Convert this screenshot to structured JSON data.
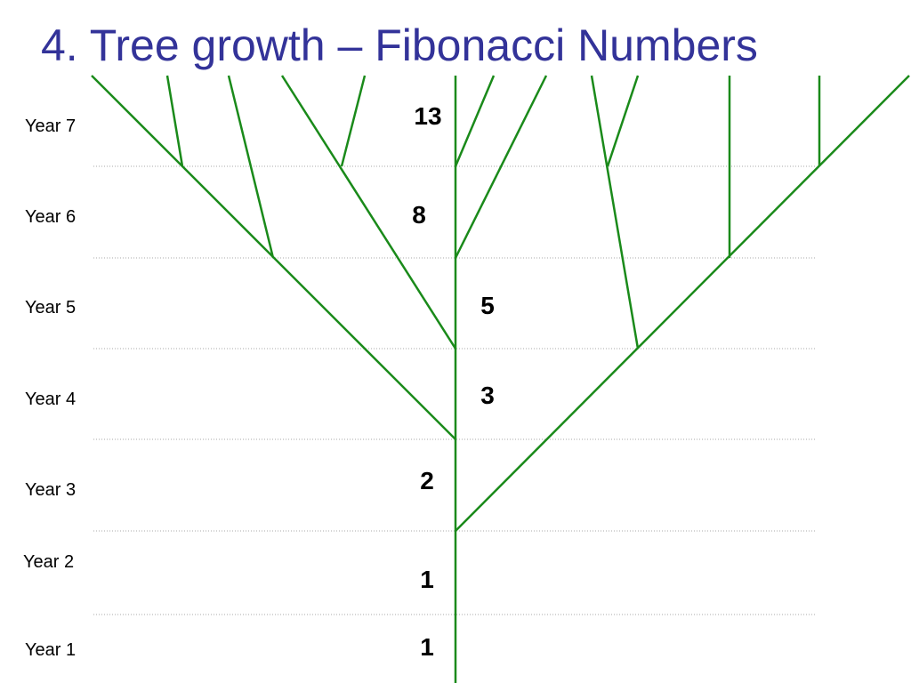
{
  "title": "4.  Tree growth – Fibonacci Numbers",
  "years": [
    "Year 7",
    "Year 6",
    "Year 5",
    "Year 4",
    "Year 3",
    "Year 2",
    "Year 1"
  ],
  "counts": [
    13,
    8,
    5,
    3,
    2,
    1,
    1
  ]
}
